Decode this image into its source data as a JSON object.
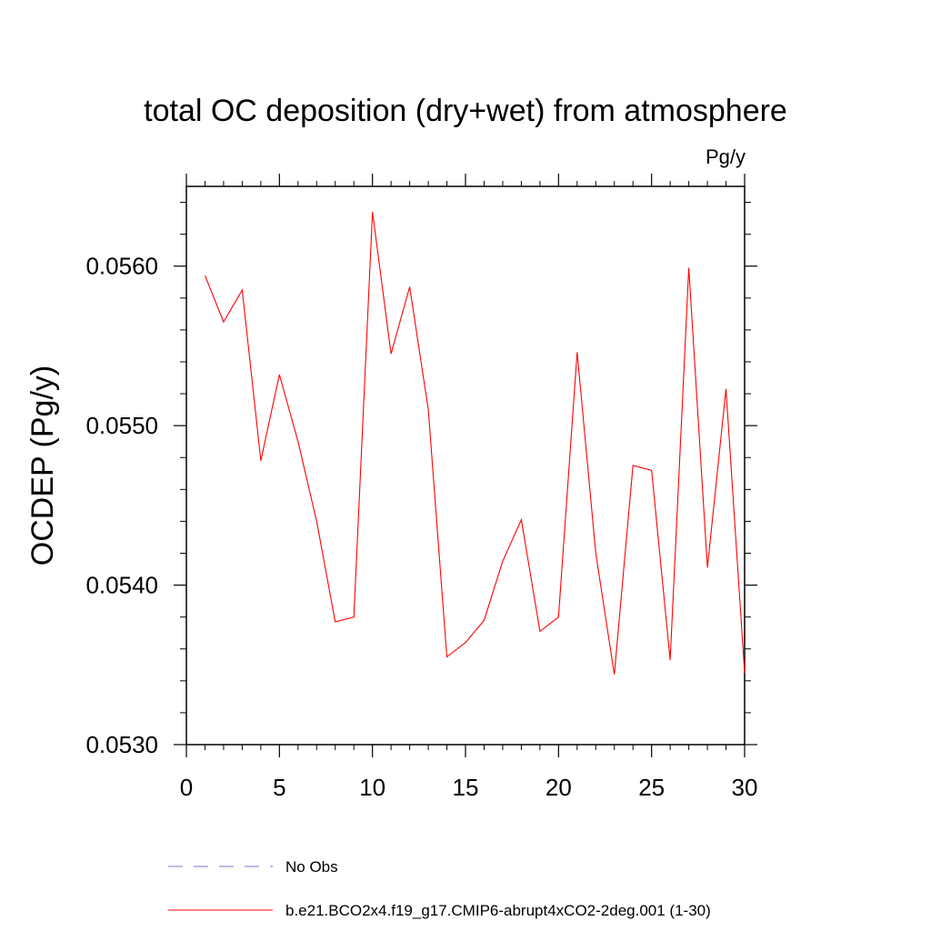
{
  "chart_data": {
    "type": "line",
    "title": "total OC deposition (dry+wet) from atmosphere",
    "units": "Pg/y",
    "xlabel": "",
    "ylabel": "OCDEP  (Pg/y)",
    "xlim": [
      0,
      30
    ],
    "ylim": [
      0.053,
      0.0565
    ],
    "x_ticks": [
      0,
      5,
      10,
      15,
      20,
      25,
      30
    ],
    "x_tick_labels": [
      "0",
      "5",
      "10",
      "15",
      "20",
      "25",
      "30"
    ],
    "y_ticks": [
      0.053,
      0.054,
      0.055,
      0.056
    ],
    "y_tick_labels": [
      "0.0530",
      "0.0540",
      "0.0550",
      "0.0560"
    ],
    "series": [
      {
        "name": "No Obs",
        "color": "#7777cc",
        "dash": true,
        "x": [],
        "values": []
      },
      {
        "name": "b.e21.BCO2x4.f19_g17.CMIP6-abrupt4xCO2-2deg.001 (1-30)",
        "color": "#ff0000",
        "dash": false,
        "x": [
          1,
          2,
          3,
          4,
          5,
          6,
          7,
          8,
          9,
          10,
          11,
          12,
          13,
          14,
          15,
          16,
          17,
          18,
          19,
          20,
          21,
          22,
          23,
          24,
          25,
          26,
          27,
          28,
          29,
          30
        ],
        "values": [
          0.05594,
          0.05565,
          0.05585,
          0.05478,
          0.05532,
          0.0549,
          0.0544,
          0.05377,
          0.0538,
          0.05634,
          0.05545,
          0.05587,
          0.0551,
          0.05355,
          0.05364,
          0.05378,
          0.05415,
          0.05441,
          0.05371,
          0.0538,
          0.05546,
          0.0542,
          0.05344,
          0.05475,
          0.05472,
          0.05353,
          0.05599,
          0.05411,
          0.05523,
          0.05345
        ]
      }
    ]
  }
}
